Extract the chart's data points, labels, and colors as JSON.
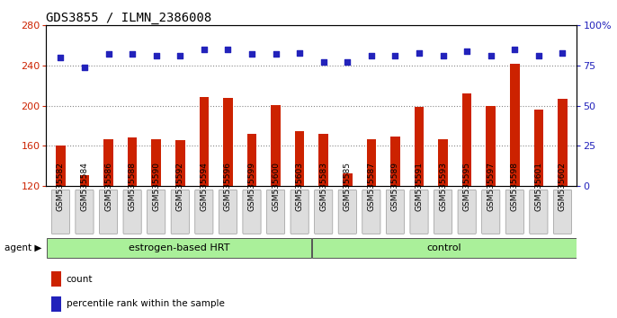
{
  "title": "GDS3855 / ILMN_2386008",
  "samples": [
    "GSM535582",
    "GSM535584",
    "GSM535586",
    "GSM535588",
    "GSM535590",
    "GSM535592",
    "GSM535594",
    "GSM535596",
    "GSM535599",
    "GSM535600",
    "GSM535603",
    "GSM535583",
    "GSM535585",
    "GSM535587",
    "GSM535589",
    "GSM535591",
    "GSM535593",
    "GSM535595",
    "GSM535597",
    "GSM535598",
    "GSM535601",
    "GSM535602"
  ],
  "bar_values": [
    160,
    131,
    167,
    168,
    167,
    166,
    209,
    208,
    172,
    201,
    175,
    172,
    133,
    167,
    169,
    199,
    167,
    212,
    200,
    242,
    196,
    207
  ],
  "pct_values": [
    80,
    74,
    82,
    82,
    81,
    81,
    85,
    85,
    82,
    82,
    83,
    77,
    77,
    81,
    81,
    83,
    81,
    84,
    81,
    85,
    81,
    83
  ],
  "group1_label": "estrogen-based HRT",
  "group1_count": 11,
  "group2_label": "control",
  "group2_count": 11,
  "agent_label": "agent",
  "bar_color": "#cc2200",
  "dot_color": "#2222bb",
  "group1_color": "#aaf09a",
  "group2_color": "#aaf09a",
  "label_bg_color": "#dddddd",
  "ylim_left": [
    120,
    280
  ],
  "ylim_right": [
    0,
    100
  ],
  "yticks_left": [
    120,
    160,
    200,
    240,
    280
  ],
  "yticks_right": [
    0,
    25,
    50,
    75,
    100
  ],
  "grid_color": "#888888",
  "background_color": "#ffffff",
  "legend_count_label": "count",
  "legend_pct_label": "percentile rank within the sample",
  "title_fontsize": 10,
  "tick_fontsize": 6.5,
  "label_fontsize": 8,
  "bar_width": 0.4
}
